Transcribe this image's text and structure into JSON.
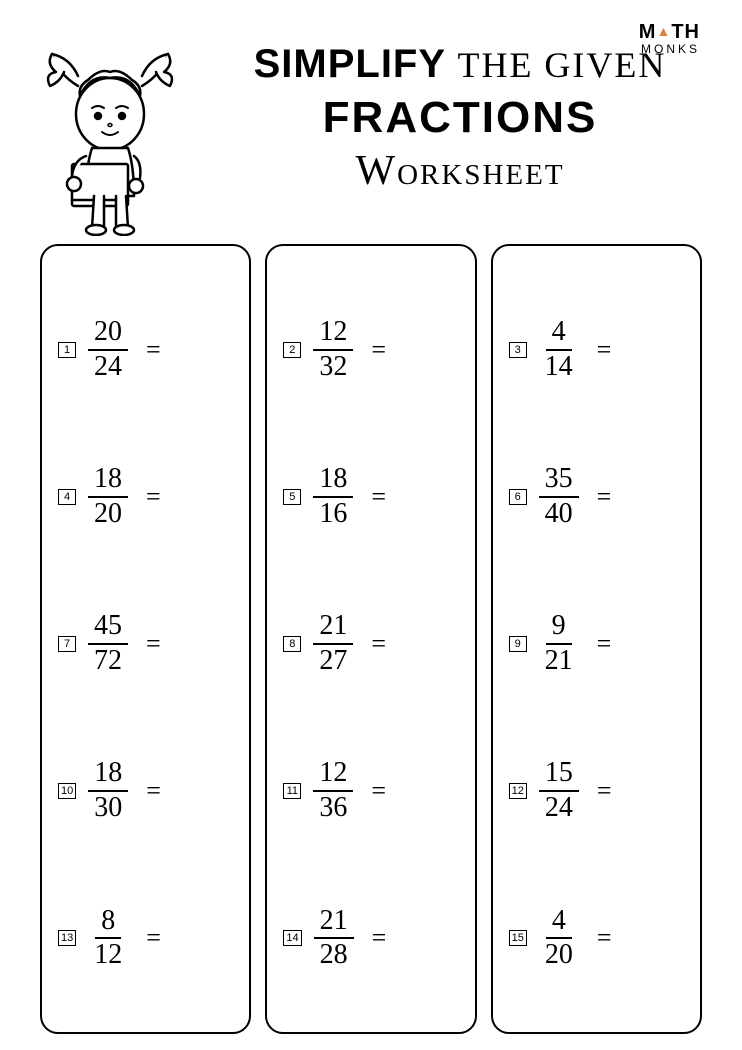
{
  "logo": {
    "top_left": "M",
    "top_right": "TH",
    "bottom": "MONKS"
  },
  "title": {
    "line1_a": "SIMPLIFY",
    "line1_b": "THE GIVEN",
    "line2": "FRACTIONS",
    "line3": "Worksheet"
  },
  "equals_sign": "=",
  "columns": [
    [
      {
        "n": "1",
        "numerator": "20",
        "denominator": "24"
      },
      {
        "n": "4",
        "numerator": "18",
        "denominator": "20"
      },
      {
        "n": "7",
        "numerator": "45",
        "denominator": "72"
      },
      {
        "n": "10",
        "numerator": "18",
        "denominator": "30"
      },
      {
        "n": "13",
        "numerator": "8",
        "denominator": "12"
      }
    ],
    [
      {
        "n": "2",
        "numerator": "12",
        "denominator": "32"
      },
      {
        "n": "5",
        "numerator": "18",
        "denominator": "16"
      },
      {
        "n": "8",
        "numerator": "21",
        "denominator": "27"
      },
      {
        "n": "11",
        "numerator": "12",
        "denominator": "36"
      },
      {
        "n": "14",
        "numerator": "21",
        "denominator": "28"
      }
    ],
    [
      {
        "n": "3",
        "numerator": "4",
        "denominator": "14"
      },
      {
        "n": "6",
        "numerator": "35",
        "denominator": "40"
      },
      {
        "n": "9",
        "numerator": "9",
        "denominator": "21"
      },
      {
        "n": "12",
        "numerator": "15",
        "denominator": "24"
      },
      {
        "n": "15",
        "numerator": "4",
        "denominator": "20"
      }
    ]
  ],
  "style": {
    "page_bg": "#ffffff",
    "text_color": "#000000",
    "border_radius": 18,
    "border_width": 2,
    "fraction_fontsize": 28,
    "title_fontsize": 40,
    "logo_accent": "#e08040"
  }
}
